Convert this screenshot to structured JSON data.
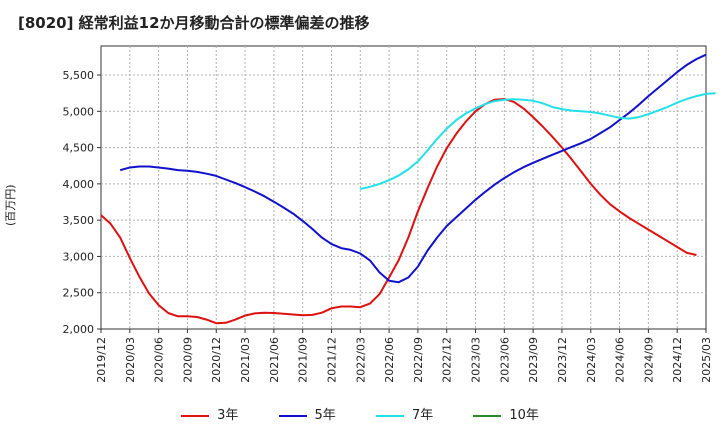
{
  "title": "[8020]  経常利益12か月移動合計の標準偏差の推移",
  "chart_data": {
    "type": "line",
    "ylabel": "(百万円)",
    "ylim": [
      2000,
      5900
    ],
    "yticks": [
      2000,
      2500,
      3000,
      3500,
      4000,
      4500,
      5000,
      5500
    ],
    "ytick_labels": [
      "2,000",
      "2,500",
      "3,000",
      "3,500",
      "4,000",
      "4,500",
      "5,000",
      "5,500"
    ],
    "xticks": [
      "2019/12",
      "2020/03",
      "2020/06",
      "2020/09",
      "2020/12",
      "2021/03",
      "2021/06",
      "2021/09",
      "2021/12",
      "2022/03",
      "2022/06",
      "2022/09",
      "2022/12",
      "2023/03",
      "2023/06",
      "2023/09",
      "2023/12",
      "2024/03",
      "2024/06",
      "2024/09",
      "2024/12",
      "2025/03"
    ],
    "grid": true,
    "legend_position": "bottom",
    "series": [
      {
        "name": "3年",
        "color": "#dd1111",
        "start_index": 0,
        "values": [
          3570,
          3450,
          3260,
          2980,
          2720,
          2490,
          2330,
          2220,
          2175,
          2175,
          2165,
          2130,
          2080,
          2085,
          2130,
          2185,
          2215,
          2225,
          2220,
          2210,
          2200,
          2190,
          2195,
          2225,
          2285,
          2310,
          2310,
          2300,
          2350,
          2480,
          2710,
          2950,
          3260,
          3620,
          3940,
          4240,
          4490,
          4690,
          4860,
          5000,
          5100,
          5160,
          5170,
          5130,
          5040,
          4920,
          4790,
          4650,
          4500,
          4340,
          4170,
          4000,
          3850,
          3720,
          3620,
          3530,
          3450,
          3370,
          3290,
          3210,
          3130,
          3050,
          3020
        ]
      },
      {
        "name": "5年",
        "color": "#1111cc",
        "start_index": 2,
        "values": [
          4190,
          4225,
          4240,
          4240,
          4225,
          4210,
          4190,
          4180,
          4165,
          4140,
          4110,
          4060,
          4010,
          3955,
          3895,
          3830,
          3755,
          3675,
          3590,
          3490,
          3380,
          3260,
          3170,
          3115,
          3090,
          3040,
          2945,
          2780,
          2665,
          2645,
          2710,
          2860,
          3080,
          3260,
          3420,
          3540,
          3660,
          3780,
          3890,
          3990,
          4080,
          4160,
          4230,
          4290,
          4345,
          4400,
          4455,
          4510,
          4560,
          4620,
          4700,
          4780,
          4880,
          4980,
          5090,
          5210,
          5320,
          5430,
          5540,
          5640,
          5720,
          5780
        ]
      },
      {
        "name": "7年",
        "color": "#22e0e8",
        "start_index": 27,
        "values": [
          3930,
          3960,
          4000,
          4050,
          4115,
          4200,
          4310,
          4460,
          4620,
          4760,
          4880,
          4970,
          5040,
          5100,
          5140,
          5160,
          5165,
          5160,
          5145,
          5110,
          5060,
          5030,
          5010,
          5000,
          4990,
          4970,
          4940,
          4910,
          4900,
          4920,
          4960,
          5010,
          5060,
          5120,
          5170,
          5210,
          5240,
          5250
        ]
      },
      {
        "name": "10年",
        "color": "#2a8a2a",
        "start_index": 0,
        "values": []
      }
    ]
  }
}
